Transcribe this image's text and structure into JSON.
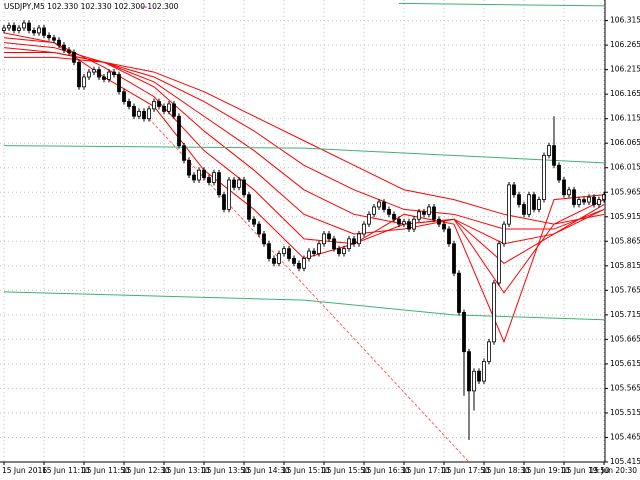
{
  "chart_data": {
    "type": "candlestick",
    "title": "USDJPY,M5  102.330 102.330 102.300 102.300",
    "categories": [
      "15 Jun 2016",
      null,
      null,
      null,
      null,
      null,
      null,
      null,
      "15 Jun 11:10",
      null,
      null,
      null,
      null,
      null,
      null,
      null,
      "15 Jun 11:50",
      null,
      null,
      null,
      null,
      null,
      null,
      null,
      "15 Jun 12:30",
      null,
      null,
      null,
      null,
      null,
      null,
      null,
      "15 Jun 13:10",
      null,
      null,
      null,
      null,
      null,
      null,
      null,
      "15 Jun 13:50",
      null,
      null,
      null,
      null,
      null,
      null,
      null,
      "15 Jun 14:30",
      null,
      null,
      null,
      null,
      null,
      null,
      null,
      "15 Jun 15:10",
      null,
      null,
      null,
      null,
      null,
      null,
      null,
      "15 Jun 15:50",
      null,
      null,
      null,
      null,
      null,
      null,
      null,
      "15 Jun 16:30",
      null,
      null,
      null,
      null,
      null,
      null,
      null,
      "15 Jun 17:10",
      null,
      null,
      null,
      null,
      null,
      null,
      null,
      "15 Jun 17:50",
      null,
      null,
      null,
      null,
      null,
      null,
      null,
      "15 Jun 18:30",
      null,
      null,
      null,
      null,
      null,
      null,
      null,
      "15 Jun 19:10",
      null,
      null,
      null,
      null,
      null,
      null,
      null,
      "15 Jun 19:50",
      null,
      null,
      null,
      null,
      null,
      null,
      null,
      "15 Jun 20:30"
    ],
    "open": [
      106.295,
      106.3,
      106.305,
      106.295,
      106.3,
      106.31,
      106.295,
      106.29,
      106.3,
      106.285,
      106.28,
      106.275,
      106.265,
      106.255,
      106.25,
      106.23,
      106.18,
      106.2,
      106.21,
      106.215,
      106.2,
      106.195,
      106.21,
      106.205,
      106.17,
      106.15,
      106.14,
      106.12,
      106.13,
      106.115,
      106.135,
      106.15,
      106.14,
      106.13,
      106.145,
      106.12,
      106.06,
      106.03,
      106.0,
      105.99,
      106.01,
      105.995,
      105.985,
      106.005,
      105.96,
      105.93,
      105.99,
      105.975,
      105.99,
      105.96,
      105.91,
      105.9,
      105.88,
      105.86,
      105.83,
      105.82,
      105.84,
      105.85,
      105.83,
      105.82,
      105.81,
      105.83,
      105.845,
      105.84,
      105.86,
      105.88,
      105.87,
      105.85,
      105.84,
      105.85,
      105.87,
      105.86,
      105.88,
      105.9,
      105.92,
      105.935,
      105.945,
      105.93,
      105.92,
      105.91,
      105.9,
      105.905,
      105.89,
      105.91,
      105.925,
      105.92,
      105.935,
      105.91,
      105.9,
      105.89,
      105.86,
      105.8,
      105.72,
      105.64,
      105.56,
      105.6,
      105.58,
      105.62,
      105.66,
      105.78,
      105.86,
      105.9,
      105.98,
      105.96,
      105.94,
      105.92,
      105.96,
      105.93,
      105.95,
      106.04,
      106.06,
      106.02,
      105.99,
      105.96,
      105.97,
      105.94,
      105.95,
      105.945,
      105.955,
      105.94,
      105.95
    ],
    "high": [
      106.306,
      106.311,
      106.311,
      106.306,
      106.316,
      106.316,
      106.301,
      106.306,
      106.306,
      106.291,
      106.286,
      106.281,
      106.271,
      106.261,
      106.256,
      106.236,
      106.206,
      106.216,
      106.221,
      106.221,
      106.206,
      106.216,
      106.216,
      106.211,
      106.176,
      106.156,
      106.146,
      106.136,
      106.136,
      106.141,
      106.156,
      106.156,
      106.146,
      106.151,
      106.151,
      106.126,
      106.066,
      106.036,
      106.006,
      106.016,
      106.016,
      106.001,
      106.011,
      106.011,
      105.966,
      105.996,
      105.996,
      105.996,
      105.996,
      105.966,
      105.916,
      105.906,
      105.886,
      105.866,
      105.836,
      105.846,
      105.856,
      105.856,
      105.836,
      105.826,
      105.836,
      105.851,
      105.851,
      105.866,
      105.886,
      105.886,
      105.876,
      105.856,
      105.856,
      105.876,
      105.876,
      105.886,
      105.906,
      105.926,
      105.941,
      105.951,
      105.951,
      105.936,
      105.926,
      105.916,
      105.911,
      105.911,
      105.916,
      105.931,
      105.931,
      105.941,
      105.941,
      105.916,
      105.906,
      105.896,
      105.866,
      105.806,
      105.726,
      105.646,
      105.606,
      105.606,
      105.626,
      105.666,
      105.786,
      105.866,
      105.906,
      105.986,
      105.986,
      105.966,
      105.946,
      105.966,
      105.966,
      105.956,
      106.046,
      106.066,
      106.12,
      106.026,
      105.996,
      105.976,
      105.976,
      105.956,
      105.956,
      105.961,
      105.961,
      105.956,
      105.966
    ],
    "low": [
      106.289,
      106.294,
      106.289,
      106.289,
      106.294,
      106.289,
      106.284,
      106.284,
      106.279,
      106.274,
      106.269,
      106.259,
      106.249,
      106.244,
      106.224,
      106.174,
      106.174,
      106.194,
      106.204,
      106.194,
      106.189,
      106.189,
      106.199,
      106.164,
      106.144,
      106.134,
      106.114,
      106.114,
      106.109,
      106.109,
      106.129,
      106.134,
      106.124,
      106.124,
      106.114,
      106.054,
      106.024,
      105.994,
      105.984,
      105.984,
      105.989,
      105.979,
      105.979,
      105.954,
      105.924,
      105.924,
      105.969,
      105.969,
      105.954,
      105.904,
      105.894,
      105.874,
      105.854,
      105.824,
      105.814,
      105.814,
      105.834,
      105.824,
      105.814,
      105.804,
      105.804,
      105.824,
      105.834,
      105.834,
      105.854,
      105.864,
      105.844,
      105.834,
      105.834,
      105.844,
      105.854,
      105.854,
      105.874,
      105.894,
      105.914,
      105.929,
      105.924,
      105.914,
      105.904,
      105.894,
      105.894,
      105.884,
      105.884,
      105.904,
      105.914,
      105.914,
      105.904,
      105.894,
      105.884,
      105.854,
      105.794,
      105.714,
      105.55,
      105.46,
      105.52,
      105.574,
      105.574,
      105.614,
      105.654,
      105.774,
      105.854,
      105.894,
      105.954,
      105.934,
      105.914,
      105.914,
      105.924,
      105.924,
      105.944,
      106.034,
      106.014,
      105.984,
      105.954,
      105.954,
      105.934,
      105.934,
      105.939,
      105.939,
      105.934,
      105.934,
      105.944
    ],
    "close": [
      106.3,
      106.305,
      106.295,
      106.3,
      106.31,
      106.295,
      106.29,
      106.3,
      106.285,
      106.28,
      106.275,
      106.265,
      106.255,
      106.25,
      106.23,
      106.18,
      106.2,
      106.21,
      106.215,
      106.2,
      106.195,
      106.21,
      106.205,
      106.17,
      106.15,
      106.14,
      106.12,
      106.13,
      106.115,
      106.135,
      106.15,
      106.14,
      106.13,
      106.145,
      106.12,
      106.06,
      106.03,
      106.0,
      105.99,
      106.01,
      105.995,
      105.985,
      106.005,
      105.96,
      105.93,
      105.99,
      105.975,
      105.99,
      105.96,
      105.91,
      105.9,
      105.88,
      105.86,
      105.83,
      105.82,
      105.84,
      105.85,
      105.83,
      105.82,
      105.81,
      105.83,
      105.845,
      105.84,
      105.86,
      105.88,
      105.87,
      105.85,
      105.84,
      105.85,
      105.87,
      105.86,
      105.88,
      105.9,
      105.92,
      105.935,
      105.945,
      105.93,
      105.92,
      105.91,
      105.9,
      105.905,
      105.89,
      105.91,
      105.925,
      105.92,
      105.935,
      105.91,
      105.9,
      105.89,
      105.86,
      105.8,
      105.72,
      105.64,
      105.56,
      105.6,
      105.58,
      105.62,
      105.66,
      105.78,
      105.86,
      105.9,
      105.98,
      105.96,
      105.94,
      105.92,
      105.96,
      105.93,
      105.95,
      106.04,
      106.06,
      106.02,
      105.99,
      105.96,
      105.97,
      105.94,
      105.95,
      105.945,
      105.955,
      105.94,
      105.95,
      105.96
    ],
    "up_color": "#ffffff",
    "down_color": "#000000",
    "overlays": [
      {
        "color": "#ff0000",
        "style": "solid",
        "x": [
          0,
          10,
          20,
          30,
          40,
          50,
          60,
          70,
          80,
          90,
          100,
          110,
          120
        ],
        "values": [
          106.29,
          106.27,
          106.2,
          106.14,
          106.01,
          105.93,
          105.83,
          105.86,
          105.92,
          105.9,
          105.66,
          105.95,
          105.96
        ]
      },
      {
        "color": "#ff0000",
        "style": "solid",
        "x": [
          0,
          10,
          20,
          30,
          40,
          50,
          60,
          70,
          80,
          90,
          100,
          110,
          120
        ],
        "values": [
          106.28,
          106.27,
          106.22,
          106.16,
          106.05,
          105.97,
          105.87,
          105.86,
          105.9,
          105.91,
          105.76,
          105.9,
          105.95
        ]
      },
      {
        "color": "#ff0000",
        "style": "solid",
        "x": [
          0,
          10,
          20,
          30,
          40,
          50,
          60,
          70,
          80,
          90,
          100,
          110,
          120
        ],
        "values": [
          106.27,
          106.26,
          106.23,
          106.18,
          106.09,
          106.01,
          105.92,
          105.88,
          105.89,
          105.91,
          105.82,
          105.88,
          105.94
        ]
      },
      {
        "color": "#ff0000",
        "style": "solid",
        "x": [
          0,
          10,
          20,
          30,
          40,
          50,
          60,
          70,
          80,
          90,
          100,
          110,
          120
        ],
        "values": [
          106.26,
          106.25,
          106.23,
          106.19,
          106.12,
          106.05,
          105.97,
          105.92,
          105.9,
          105.91,
          105.86,
          105.88,
          105.93
        ]
      },
      {
        "color": "#ff0000",
        "style": "solid",
        "x": [
          0,
          10,
          20,
          30,
          40,
          50,
          60,
          70,
          80,
          90,
          100,
          110,
          120
        ],
        "values": [
          106.25,
          106.25,
          106.23,
          106.2,
          106.15,
          106.09,
          106.02,
          105.97,
          105.93,
          105.92,
          105.89,
          105.89,
          105.93
        ]
      },
      {
        "color": "#ff0000",
        "style": "solid",
        "x": [
          0,
          10,
          20,
          30,
          40,
          50,
          60,
          70,
          80,
          90,
          100,
          110,
          120
        ],
        "values": [
          106.24,
          106.24,
          106.23,
          106.21,
          106.17,
          106.12,
          106.07,
          106.02,
          105.97,
          105.95,
          105.92,
          105.9,
          105.92
        ]
      },
      {
        "color": "#3cb371",
        "style": "solid",
        "x": [
          79,
          120
        ],
        "values": [
          106.35,
          106.345
        ]
      },
      {
        "color": "#3cb371",
        "style": "solid",
        "x": [
          0,
          60,
          90,
          120
        ],
        "values": [
          106.06,
          106.055,
          106.04,
          106.025
        ]
      },
      {
        "color": "#3cb371",
        "style": "solid",
        "x": [
          0,
          60,
          90,
          120
        ],
        "values": [
          105.762,
          105.745,
          105.715,
          105.705
        ]
      },
      {
        "color": "#ff6060",
        "style": "dashed",
        "x": [
          29,
          93
        ],
        "values": [
          106.115,
          105.415
        ]
      }
    ],
    "ylim": [
      105.415,
      106.357
    ],
    "yticks": [
      106.315,
      106.265,
      106.215,
      106.165,
      106.115,
      106.065,
      106.015,
      105.965,
      105.915,
      105.865,
      105.815,
      105.765,
      105.715,
      105.665,
      105.615,
      105.565,
      105.515,
      105.465,
      105.415
    ],
    "grid": true
  }
}
